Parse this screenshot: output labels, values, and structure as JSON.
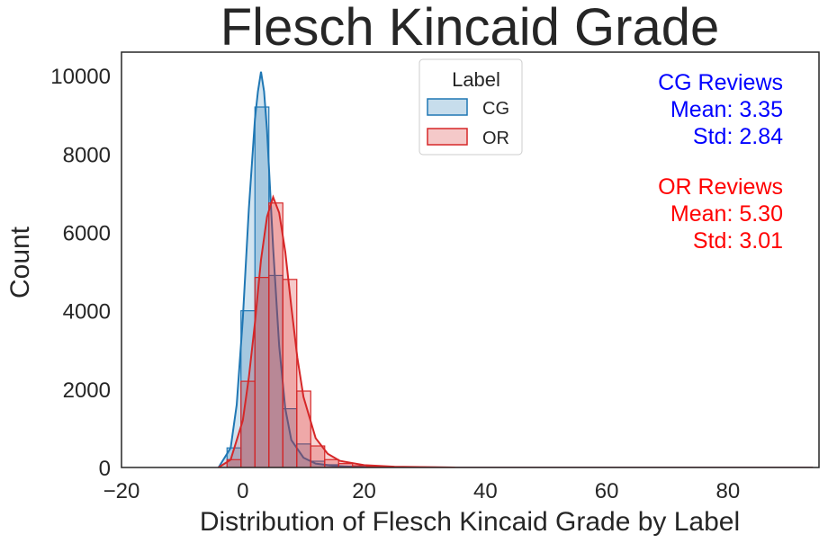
{
  "colors": {
    "cg": "#1f77b4",
    "or": "#d62728",
    "cg_text": "#0000ff",
    "or_text": "#ff0000",
    "axis": "#262626"
  },
  "chart_data": {
    "type": "histogram",
    "title": "Flesch Kincaid Grade",
    "xlabel": "Distribution of Flesch Kincaid Grade by Label",
    "ylabel": "Count",
    "xlim": [
      -20,
      95
    ],
    "ylim": [
      0,
      10600
    ],
    "xticks": [
      -20,
      0,
      20,
      40,
      60,
      80
    ],
    "xtick_labels": [
      "−20",
      "0",
      "20",
      "40",
      "60",
      "80"
    ],
    "yticks": [
      0,
      2000,
      4000,
      6000,
      8000,
      10000
    ],
    "ytick_labels": [
      "0",
      "2000",
      "4000",
      "6000",
      "8000",
      "10000"
    ],
    "grid": false,
    "legend": {
      "title": "Label",
      "placement": "top-center",
      "entries": [
        "CG",
        "OR"
      ]
    },
    "bins": {
      "edges": [
        -2.6,
        -0.3,
        2.0,
        4.3,
        6.6,
        8.9,
        11.2,
        13.5,
        15.8,
        18.1,
        20.4,
        22.7,
        25.0,
        27.3,
        29.6,
        31.9
      ]
    },
    "series": [
      {
        "name": "CG",
        "color_key": "cg",
        "counts": [
          500,
          4000,
          9200,
          4900,
          1500,
          600,
          160,
          70,
          30,
          12,
          5,
          3,
          2,
          1,
          1
        ],
        "kde": {
          "x": [
            -4,
            -2,
            -1,
            0,
            1,
            2,
            2.5,
            3,
            3.5,
            4,
            5,
            6,
            7,
            8,
            10,
            12,
            15,
            20,
            25,
            35
          ],
          "y": [
            0,
            500,
            1600,
            3800,
            6600,
            8900,
            9600,
            10100,
            9600,
            8600,
            5600,
            3100,
            1500,
            700,
            250,
            100,
            40,
            10,
            5,
            0
          ]
        }
      },
      {
        "name": "OR",
        "color_key": "or",
        "counts": [
          200,
          2200,
          4850,
          6750,
          4800,
          1950,
          550,
          200,
          100,
          45,
          20,
          10,
          5,
          3,
          2
        ],
        "kde": {
          "x": [
            -4,
            -2,
            0,
            1,
            2,
            3,
            4,
            5,
            6,
            7,
            8,
            9,
            10,
            12,
            14,
            16,
            20,
            25,
            35
          ],
          "y": [
            0,
            200,
            1200,
            2300,
            3700,
            5300,
            6400,
            6900,
            6500,
            5500,
            4100,
            2800,
            1800,
            750,
            350,
            170,
            60,
            20,
            0
          ]
        }
      }
    ],
    "annotations": [
      {
        "color_key": "cg_text",
        "lines": [
          "CG Reviews",
          "Mean: 3.35",
          "Std: 2.84"
        ]
      },
      {
        "color_key": "or_text",
        "lines": [
          "OR Reviews",
          "Mean: 5.30",
          "Std: 3.01"
        ]
      }
    ]
  }
}
